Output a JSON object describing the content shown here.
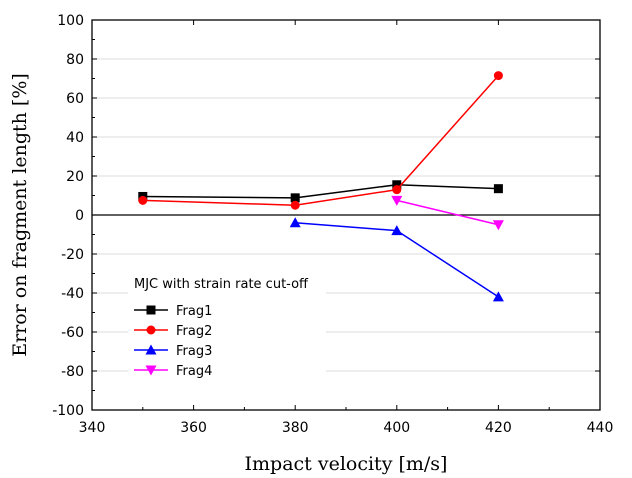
{
  "chart_data": {
    "type": "line",
    "title": "",
    "xlabel": "Impact velocity [m/s]",
    "ylabel": "Error on fragment length [%]",
    "xlim": [
      340,
      440
    ],
    "ylim": [
      -100,
      100
    ],
    "x_ticks": [
      340,
      360,
      380,
      400,
      420,
      440
    ],
    "y_ticks": [
      -100,
      -80,
      -60,
      -40,
      -20,
      0,
      20,
      40,
      60,
      80,
      100
    ],
    "grid": "horizontal",
    "zero_line": true,
    "legend": {
      "title": "MJC with strain rate cut-off",
      "placement": "lower-left"
    },
    "series": [
      {
        "name": "Frag1",
        "color": "#000000",
        "marker": "square",
        "points": [
          [
            350,
            9.5
          ],
          [
            380,
            8.8
          ],
          [
            400,
            15.5
          ],
          [
            420,
            13.5
          ]
        ]
      },
      {
        "name": "Frag2",
        "color": "#ff0000",
        "marker": "circle",
        "points": [
          [
            350,
            7.5
          ],
          [
            380,
            5.0
          ],
          [
            400,
            13.0
          ],
          [
            420,
            71.5
          ]
        ]
      },
      {
        "name": "Frag3",
        "color": "#0000ff",
        "marker": "triangle-up",
        "points": [
          [
            380,
            -4.0
          ],
          [
            400,
            -8.0
          ],
          [
            420,
            -42.0
          ]
        ]
      },
      {
        "name": "Frag4",
        "color": "#ff00ff",
        "marker": "triangle-down",
        "points": [
          [
            400,
            7.5
          ],
          [
            420,
            -5.0
          ]
        ]
      }
    ]
  }
}
